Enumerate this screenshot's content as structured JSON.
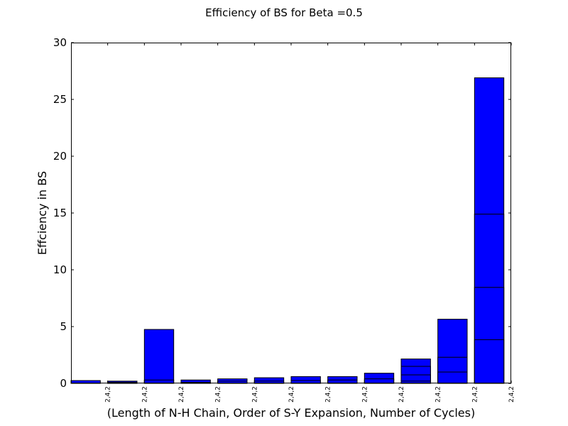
{
  "chart_data": {
    "type": "bar",
    "stacked": true,
    "title": "Efficiency of BS for Beta =0.5",
    "xlabel": "(Length of N-H Chain, Order of S-Y Expansion, Number of Cycles)",
    "ylabel": "Effciency in BS",
    "ylim": [
      0,
      30
    ],
    "yticks": [
      0,
      5,
      10,
      15,
      20,
      25,
      30
    ],
    "categories": [
      "2,4,2",
      "2,4,2",
      "2,4,2",
      "2,4,2",
      "2,4,2",
      "2,4,2",
      "2,4,2",
      "2,4,2",
      "2,4,2",
      "2,4,2",
      "2,4,2",
      "2,4,2"
    ],
    "stacks": [
      [
        0.25
      ],
      [
        0.1,
        0.2
      ],
      [
        0.3,
        4.75
      ],
      [
        0.1,
        0.3
      ],
      [
        0.2,
        0.4
      ],
      [
        0.2,
        0.5
      ],
      [
        0.25,
        0.6
      ],
      [
        0.3,
        0.6
      ],
      [
        0.4,
        0.9
      ],
      [
        0.2,
        0.75,
        1.5,
        2.15
      ],
      [
        1.0,
        2.3,
        5.65
      ],
      [
        3.85,
        8.45,
        14.9,
        26.9
      ]
    ],
    "bar_color": "#0000ff",
    "grid": false
  }
}
